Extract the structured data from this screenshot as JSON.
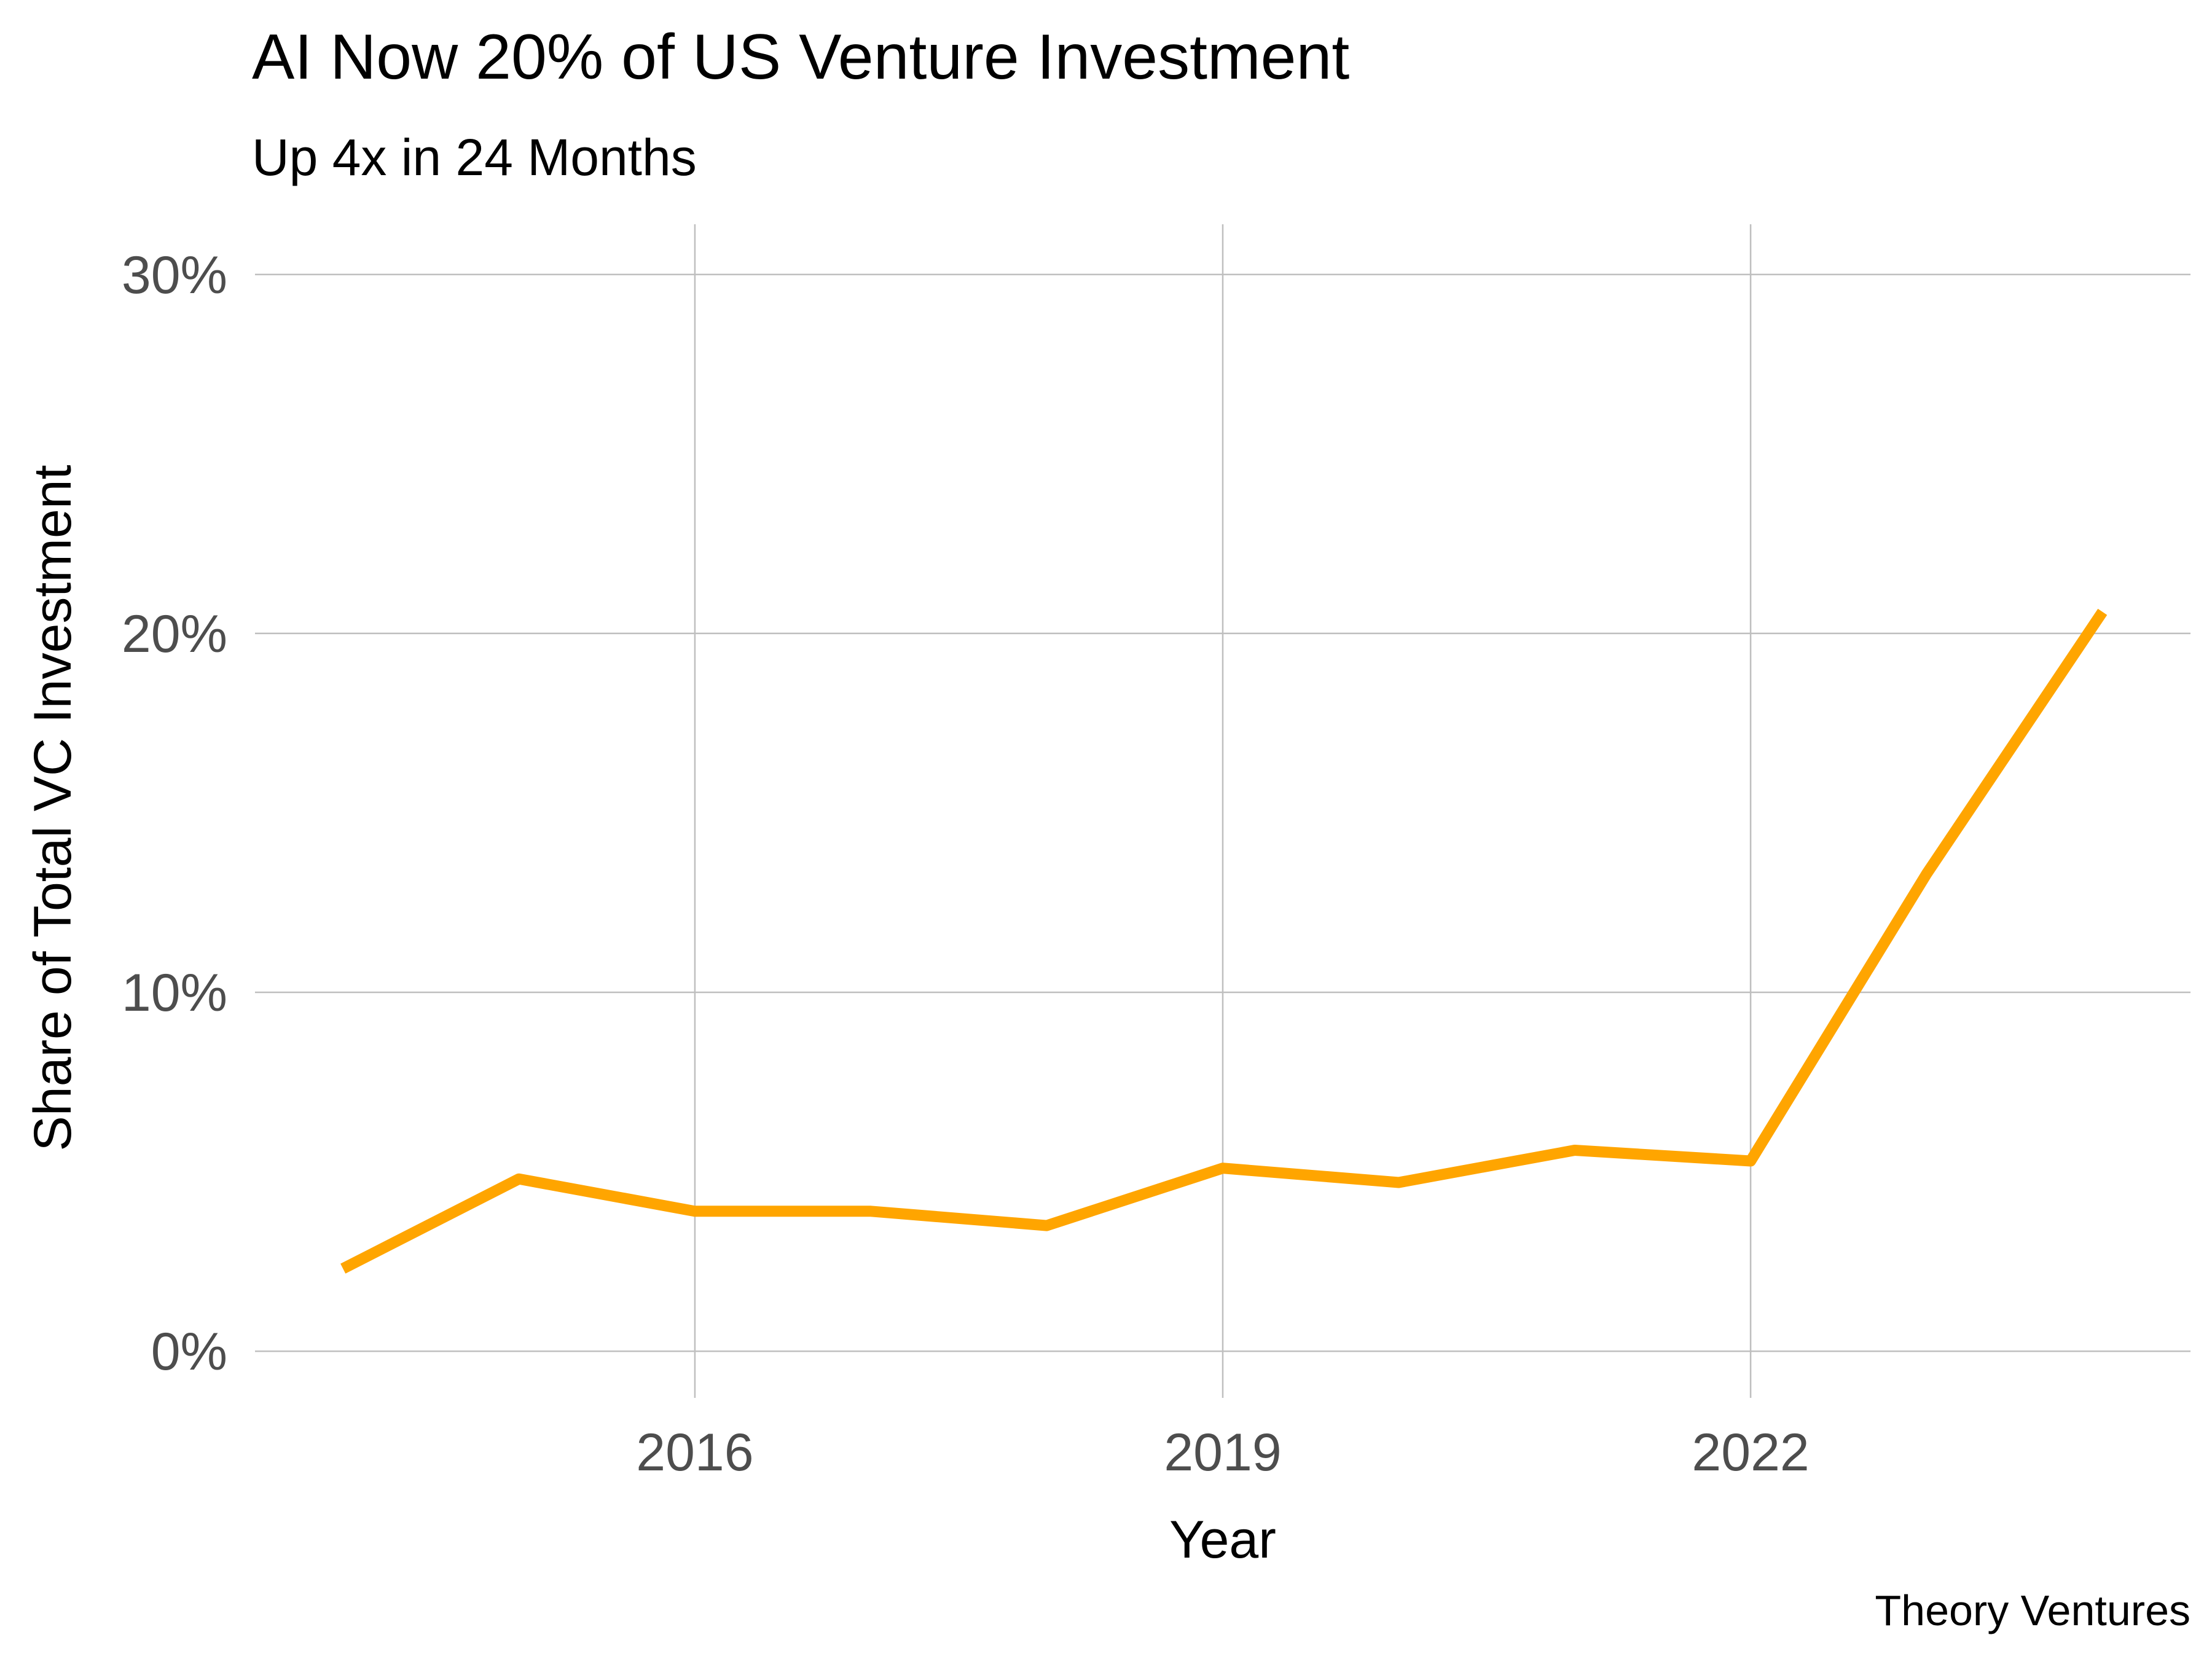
{
  "chart_data": {
    "type": "line",
    "title": "AI Now 20% of US Venture Investment",
    "subtitle": "Up 4x in 24 Months",
    "xlabel": "Year",
    "ylabel": "Share of Total VC Investment",
    "caption": "Theory Ventures",
    "xlim": [
      2013.5,
      2024.5
    ],
    "ylim": [
      -1.3,
      31.4
    ],
    "x_ticks": [
      2016,
      2019,
      2022
    ],
    "x_tick_labels": [
      "2016",
      "2019",
      "2022"
    ],
    "y_ticks": [
      0,
      10,
      20,
      30
    ],
    "y_tick_labels": [
      "0%",
      "10%",
      "20%",
      "30%"
    ],
    "grid": true,
    "line_color": "#FFA500",
    "series": [
      {
        "x": [
          2014,
          2015,
          2016,
          2017,
          2018,
          2019,
          2020,
          2021,
          2022,
          2023,
          2024
        ],
        "y": [
          2.3,
          4.8,
          3.9,
          3.9,
          3.5,
          5.1,
          4.7,
          5.6,
          5.3,
          13.3,
          20.6
        ]
      }
    ]
  }
}
